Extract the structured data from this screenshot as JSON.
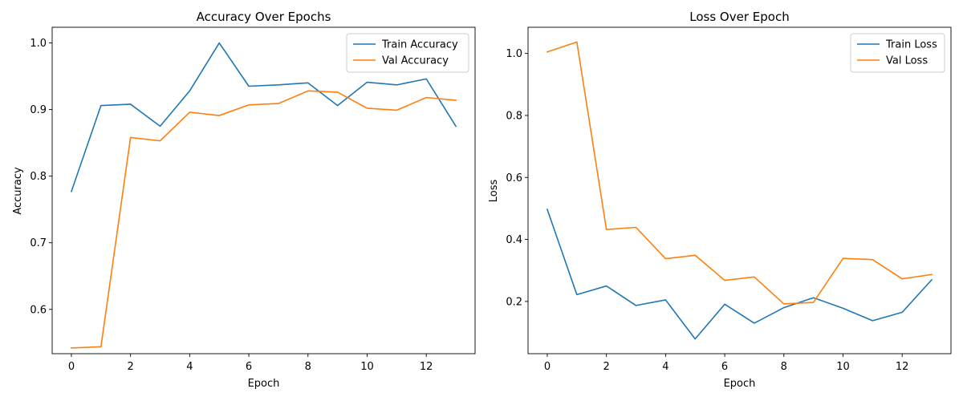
{
  "chart_data": [
    {
      "type": "line",
      "title": "Accuracy Over Epochs",
      "xlabel": "Epoch",
      "ylabel": "Accuracy",
      "x": [
        0,
        1,
        2,
        3,
        4,
        5,
        6,
        7,
        8,
        9,
        10,
        11,
        12,
        13
      ],
      "xlim": [
        -0.65,
        13.65
      ],
      "ylim": [
        0.5335,
        1.0235
      ],
      "xticks": [
        0,
        2,
        4,
        6,
        8,
        10,
        12
      ],
      "yticks": [
        0.6,
        0.7,
        0.8,
        0.9,
        1.0
      ],
      "ytick_labels": [
        "0.6",
        "0.7",
        "0.8",
        "0.9",
        "1.0"
      ],
      "legend_position": "top-right",
      "grid": false,
      "series": [
        {
          "name": "Train Accuracy",
          "color": "#1f77b4",
          "values": [
            0.777,
            0.906,
            0.908,
            0.875,
            0.928,
            1.0,
            0.935,
            0.937,
            0.94,
            0.906,
            0.941,
            0.937,
            0.946,
            0.875
          ]
        },
        {
          "name": "Val Accuracy",
          "color": "#ff7f0e",
          "values": [
            0.542,
            0.544,
            0.858,
            0.853,
            0.896,
            0.891,
            0.907,
            0.909,
            0.928,
            0.926,
            0.902,
            0.899,
            0.918,
            0.914
          ]
        }
      ]
    },
    {
      "type": "line",
      "title": "Loss Over Epoch",
      "xlabel": "Epoch",
      "ylabel": "Loss",
      "x": [
        0,
        1,
        2,
        3,
        4,
        5,
        6,
        7,
        8,
        9,
        10,
        11,
        12,
        13
      ],
      "xlim": [
        -0.65,
        13.65
      ],
      "ylim": [
        0.0315,
        1.0845
      ],
      "xticks": [
        0,
        2,
        4,
        6,
        8,
        10,
        12
      ],
      "yticks": [
        0.2,
        0.4,
        0.6,
        0.8,
        1.0
      ],
      "ytick_labels": [
        "0.2",
        "0.4",
        "0.6",
        "0.8",
        "1.0"
      ],
      "legend_position": "top-right",
      "grid": false,
      "series": [
        {
          "name": "Train Loss",
          "color": "#1f77b4",
          "values": [
            0.497,
            0.222,
            0.25,
            0.187,
            0.205,
            0.079,
            0.191,
            0.13,
            0.18,
            0.212,
            0.178,
            0.138,
            0.165,
            0.27
          ]
        },
        {
          "name": "Val Loss",
          "color": "#ff7f0e",
          "values": [
            1.005,
            1.037,
            0.432,
            0.439,
            0.338,
            0.349,
            0.268,
            0.279,
            0.192,
            0.197,
            0.339,
            0.335,
            0.273,
            0.287
          ]
        }
      ]
    }
  ]
}
